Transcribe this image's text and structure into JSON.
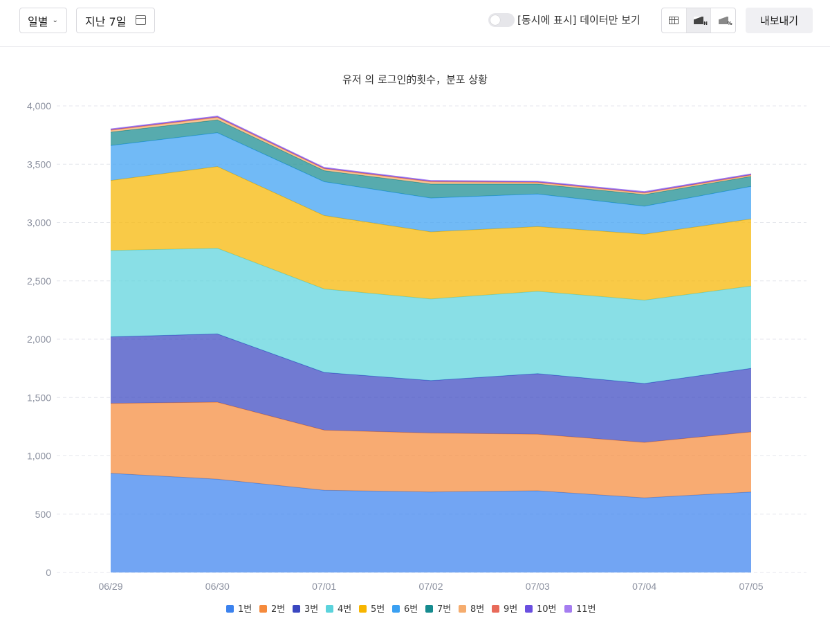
{
  "toolbar": {
    "granularity": "일별",
    "date_range": "지난 7일",
    "toggle_label": "[동시에 표시] 데이터만 보기",
    "toggle_on": false,
    "export_label": "내보내기",
    "view_modes": [
      "table-icon",
      "stacked-area-icon",
      "percent-area-icon"
    ],
    "active_view": "stacked-area-icon"
  },
  "chart_data": {
    "type": "area",
    "stacked": true,
    "title": "유저 의 로그인的횟수，분포 상황",
    "x": [
      "06/29",
      "06/30",
      "07/01",
      "07/02",
      "07/03",
      "07/04",
      "07/05"
    ],
    "ylim": [
      0,
      4000
    ],
    "yticks": [
      0,
      500,
      1000,
      1500,
      2000,
      2500,
      3000,
      3500,
      4000
    ],
    "ytick_labels": [
      "0",
      "500",
      "1,000",
      "1,500",
      "2,000",
      "2,500",
      "3,000",
      "3,500",
      "4,000"
    ],
    "grid": true,
    "legend_position": "bottom",
    "series": [
      {
        "name": "1번",
        "color": "#3b82ee",
        "values": [
          850,
          800,
          705,
          690,
          700,
          640,
          690
        ]
      },
      {
        "name": "2번",
        "color": "#f58a3c",
        "values": [
          600,
          660,
          515,
          505,
          485,
          475,
          515
        ]
      },
      {
        "name": "3번",
        "color": "#3a47c0",
        "values": [
          570,
          585,
          495,
          450,
          520,
          505,
          545
        ]
      },
      {
        "name": "4번",
        "color": "#5bd3dc",
        "values": [
          740,
          735,
          715,
          700,
          705,
          715,
          705
        ]
      },
      {
        "name": "5번",
        "color": "#f7b500",
        "values": [
          600,
          700,
          630,
          575,
          555,
          565,
          575
        ]
      },
      {
        "name": "6번",
        "color": "#3aa0f2",
        "values": [
          300,
          290,
          290,
          290,
          280,
          240,
          280
        ]
      },
      {
        "name": "7번",
        "color": "#168b8f",
        "values": [
          115,
          110,
          95,
          120,
          85,
          100,
          85
        ]
      },
      {
        "name": "8번",
        "color": "#f5ac6e",
        "values": [
          15,
          20,
          15,
          18,
          12,
          12,
          10
        ]
      },
      {
        "name": "9번",
        "color": "#e86a5a",
        "values": [
          5,
          5,
          5,
          5,
          5,
          5,
          5
        ]
      },
      {
        "name": "10번",
        "color": "#6a4fe0",
        "values": [
          3,
          3,
          3,
          3,
          3,
          3,
          3
        ]
      },
      {
        "name": "11번",
        "color": "#a57df0",
        "values": [
          5,
          5,
          5,
          5,
          5,
          5,
          5
        ]
      }
    ]
  }
}
